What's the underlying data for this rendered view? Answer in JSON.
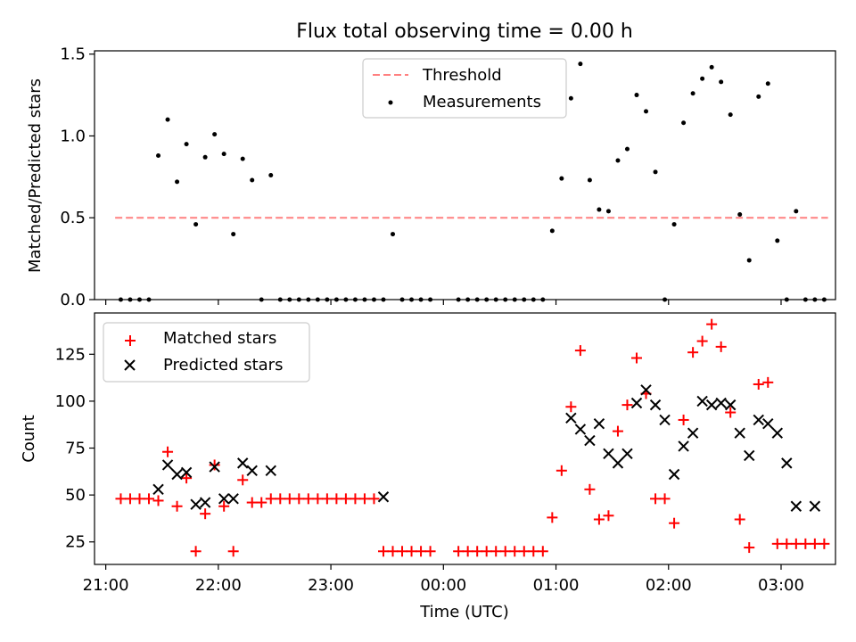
{
  "chart_data": [
    {
      "type": "scatter",
      "title": "Flux total observing time = 0.00 h",
      "ylabel": "Matched/Predicted stars",
      "xlabel": "",
      "xlim": [
        "20:54",
        "27:29"
      ],
      "ylim": [
        0,
        1.52
      ],
      "yticks": [
        0,
        0.5,
        1.0,
        1.5
      ],
      "ytick_labels": [
        "0.0",
        "0.5",
        "1.0",
        "1.5"
      ],
      "grid": false,
      "legend": {
        "position": "top-center",
        "entries": [
          "Threshold",
          "Measurements"
        ]
      },
      "threshold": {
        "name": "Threshold",
        "value": 0.5,
        "x_range": [
          "21:05",
          "27:25"
        ],
        "color": "#ff8080",
        "style": "dashed"
      },
      "series": [
        {
          "name": "Measurements",
          "color": "#000000",
          "marker": "dot",
          "x": [
            "21:08",
            "21:13",
            "21:18",
            "21:23",
            "21:28",
            "21:33",
            "21:38",
            "21:43",
            "21:48",
            "21:53",
            "21:58",
            "22:03",
            "22:08",
            "22:13",
            "22:18",
            "22:23",
            "22:28",
            "22:33",
            "22:38",
            "22:43",
            "22:48",
            "22:53",
            "22:58",
            "23:03",
            "23:08",
            "23:13",
            "23:18",
            "23:23",
            "23:28",
            "23:33",
            "23:38",
            "23:43",
            "23:48",
            "23:53",
            "00:08",
            "00:13",
            "00:18",
            "00:23",
            "00:28",
            "00:33",
            "00:38",
            "00:43",
            "00:48",
            "00:53",
            "00:58",
            "01:03",
            "01:08",
            "01:13",
            "01:18",
            "01:23",
            "01:28",
            "01:33",
            "01:38",
            "01:43",
            "01:48",
            "01:53",
            "01:58",
            "02:03",
            "02:08",
            "02:13",
            "02:18",
            "02:23",
            "02:28",
            "02:33",
            "02:38",
            "02:43",
            "02:48",
            "02:53",
            "02:58",
            "03:03",
            "03:08",
            "03:13",
            "03:18",
            "03:23"
          ],
          "y": [
            0,
            0,
            0,
            0,
            0.88,
            1.1,
            0.72,
            0.95,
            0.46,
            0.87,
            1.01,
            0.89,
            0.4,
            0.86,
            0.73,
            0,
            0.76,
            0,
            0,
            0,
            0,
            0,
            0,
            0,
            0,
            0,
            0,
            0,
            0,
            0.4,
            0,
            0,
            0,
            0,
            0,
            0,
            0,
            0,
            0,
            0,
            0,
            0,
            0,
            0,
            0.42,
            0.74,
            1.23,
            1.44,
            0.73,
            0.55,
            0.54,
            0.85,
            0.92,
            1.25,
            1.15,
            0.78,
            0,
            0.46,
            1.08,
            1.26,
            1.35,
            1.42,
            1.33,
            1.13,
            0.52,
            0.24,
            1.24,
            1.32,
            0.36,
            0,
            0.54,
            0,
            0,
            0
          ]
        }
      ]
    },
    {
      "type": "scatter",
      "title": "",
      "xlabel": "Time (UTC)",
      "ylabel": "Count",
      "xlim": [
        "20:54",
        "27:29"
      ],
      "xticks": [
        "21:00",
        "22:00",
        "23:00",
        "00:00",
        "01:00",
        "02:00",
        "03:00"
      ],
      "ylim": [
        13,
        147
      ],
      "yticks": [
        25,
        50,
        75,
        100,
        125
      ],
      "grid": false,
      "legend": {
        "position": "top-left",
        "entries": [
          "Matched stars",
          "Predicted stars"
        ]
      },
      "series": [
        {
          "name": "Matched stars",
          "color": "#ff0000",
          "marker": "plus",
          "x": [
            "21:08",
            "21:13",
            "21:18",
            "21:23",
            "21:28",
            "21:33",
            "21:38",
            "21:43",
            "21:48",
            "21:53",
            "21:58",
            "22:03",
            "22:08",
            "22:13",
            "22:18",
            "22:23",
            "22:28",
            "22:33",
            "22:38",
            "22:43",
            "22:48",
            "22:53",
            "22:58",
            "23:03",
            "23:08",
            "23:13",
            "23:18",
            "23:23",
            "23:28",
            "23:33",
            "23:38",
            "23:43",
            "23:48",
            "23:53",
            "00:08",
            "00:13",
            "00:18",
            "00:23",
            "00:28",
            "00:33",
            "00:38",
            "00:43",
            "00:48",
            "00:53",
            "00:58",
            "01:03",
            "01:08",
            "01:13",
            "01:18",
            "01:23",
            "01:28",
            "01:33",
            "01:38",
            "01:43",
            "01:48",
            "01:53",
            "01:58",
            "02:03",
            "02:08",
            "02:13",
            "02:18",
            "02:23",
            "02:28",
            "02:33",
            "02:38",
            "02:43",
            "02:48",
            "02:53",
            "02:58",
            "03:03",
            "03:08",
            "03:13",
            "03:18",
            "03:23"
          ],
          "y": [
            48,
            48,
            48,
            48,
            47,
            73,
            44,
            59,
            20,
            40,
            66,
            44,
            20,
            58,
            46,
            46,
            48,
            48,
            48,
            48,
            48,
            48,
            48,
            48,
            48,
            48,
            48,
            48,
            20,
            20,
            20,
            20,
            20,
            20,
            20,
            20,
            20,
            20,
            20,
            20,
            20,
            20,
            20,
            20,
            38,
            63,
            97,
            127,
            53,
            37,
            39,
            84,
            98,
            123,
            104,
            48,
            48,
            35,
            90,
            126,
            132,
            141,
            129,
            94,
            37,
            22,
            109,
            110,
            24,
            24,
            24,
            24,
            24,
            24
          ]
        },
        {
          "name": "Predicted stars",
          "color": "#000000",
          "marker": "x",
          "x": [
            "21:28",
            "21:33",
            "21:38",
            "21:43",
            "21:48",
            "21:53",
            "21:58",
            "22:03",
            "22:08",
            "22:13",
            "22:18",
            "22:28",
            "23:28",
            "01:08",
            "01:13",
            "01:18",
            "01:23",
            "01:28",
            "01:33",
            "01:38",
            "01:43",
            "01:48",
            "01:53",
            "01:58",
            "02:03",
            "02:08",
            "02:13",
            "02:18",
            "02:23",
            "02:28",
            "02:33",
            "02:38",
            "02:43",
            "02:48",
            "02:53",
            "02:58",
            "03:03",
            "03:08",
            "03:18"
          ],
          "y": [
            53,
            66,
            61,
            62,
            45,
            46,
            65,
            48,
            48,
            67,
            63,
            63,
            49,
            91,
            85,
            79,
            88,
            72,
            67,
            72,
            99,
            106,
            98,
            90,
            61,
            76,
            83,
            100,
            98,
            99,
            98,
            83,
            71,
            90,
            88,
            83,
            67,
            44,
            44
          ]
        }
      ]
    }
  ]
}
